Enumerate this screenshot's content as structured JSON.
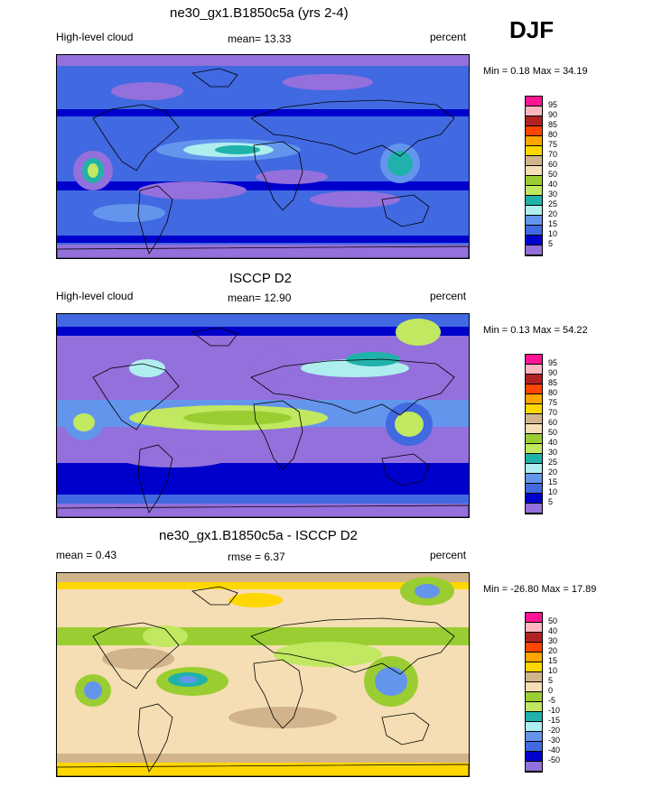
{
  "season": "DJF",
  "panels": [
    {
      "title": "ne30_gx1.B1850c5a (yrs 2-4)",
      "left_label": "High-level cloud",
      "center_label": "mean=  13.33",
      "right_label": "percent",
      "minmax": "Min =   0.18 Max =  34.19",
      "levels": [
        "95",
        "90",
        "85",
        "80",
        "75",
        "70",
        "60",
        "50",
        "40",
        "30",
        "25",
        "20",
        "15",
        "10",
        "5"
      ],
      "colors": [
        "#ff1493",
        "#ffb6c1",
        "#b22222",
        "#ff4500",
        "#ffa500",
        "#ffd700",
        "#d2b48c",
        "#f5deb3",
        "#9acd32",
        "#c0e860",
        "#20b2aa",
        "#afeeee",
        "#6495ed",
        "#4169e1",
        "#0000cd",
        "#9370db"
      ]
    },
    {
      "title": "ISCCP D2",
      "left_label": "High-level cloud",
      "center_label": "mean=  12.90",
      "right_label": "percent",
      "minmax": "Min =   0.13 Max =  54.22",
      "levels": [
        "95",
        "90",
        "85",
        "80",
        "75",
        "70",
        "60",
        "50",
        "40",
        "30",
        "25",
        "20",
        "15",
        "10",
        "5"
      ],
      "colors": [
        "#ff1493",
        "#ffb6c1",
        "#b22222",
        "#ff4500",
        "#ffa500",
        "#ffd700",
        "#d2b48c",
        "#f5deb3",
        "#9acd32",
        "#c0e860",
        "#20b2aa",
        "#afeeee",
        "#6495ed",
        "#4169e1",
        "#0000cd",
        "#9370db"
      ]
    },
    {
      "title": "ne30_gx1.B1850c5a - ISCCP D2",
      "left_label": "mean =   0.43",
      "center_label": "rmse =   6.37",
      "right_label": "percent",
      "minmax": "Min = -26.80 Max =  17.89",
      "levels": [
        "50",
        "40",
        "30",
        "20",
        "15",
        "10",
        "5",
        "0",
        "-5",
        "-10",
        "-15",
        "-20",
        "-30",
        "-40",
        "-50"
      ],
      "colors": [
        "#ff1493",
        "#ffb6c1",
        "#b22222",
        "#ff4500",
        "#ffa500",
        "#ffd700",
        "#d2b48c",
        "#f5deb3",
        "#9acd32",
        "#c0e860",
        "#20b2aa",
        "#afeeee",
        "#6495ed",
        "#4169e1",
        "#0000cd",
        "#9370db"
      ]
    }
  ]
}
